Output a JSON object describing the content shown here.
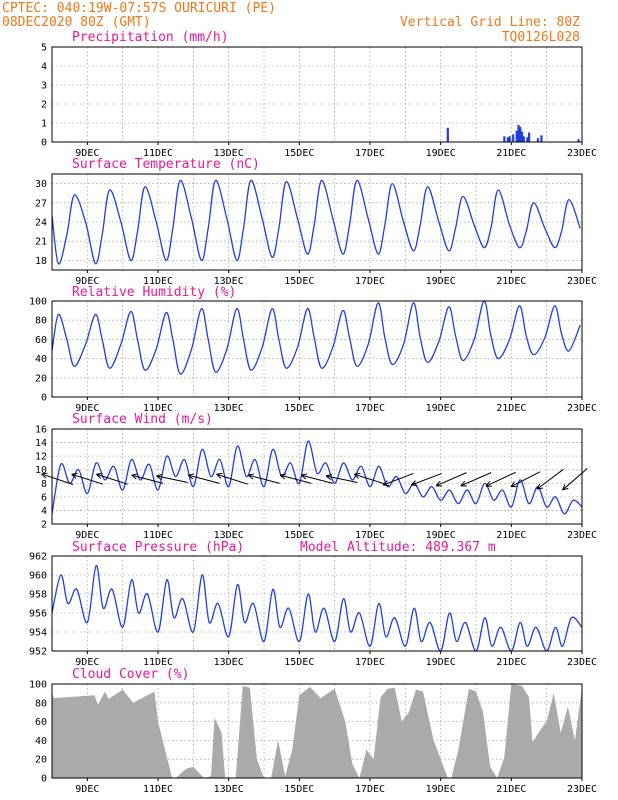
{
  "header": {
    "line1_left": "CPTEC:   040:19W-07:57S  OURICURI (PE)",
    "line2_left": "08DEC2020 80Z (GMT)",
    "right_line1": "Vertical Grid Line: 80Z",
    "right_line2": "TQ0126L028"
  },
  "colors": {
    "header": "#f07818",
    "title": "#e8189a",
    "series": "#1f3fe0",
    "cloud": "#aaaaaa",
    "arrow": "#000000"
  },
  "x_axis": {
    "labels": [
      "9DEC",
      "11DEC",
      "13DEC",
      "15DEC",
      "17DEC",
      "19DEC",
      "21DEC",
      "23DEC"
    ],
    "label_days": [
      9,
      11,
      13,
      15,
      17,
      19,
      21,
      23
    ],
    "day_range": [
      8,
      23
    ]
  },
  "chart_data": [
    {
      "type": "bar",
      "title": "Precipitation (mm/h)",
      "ylim": [
        0,
        5
      ],
      "yticks": [
        "0",
        "1",
        "2",
        "3",
        "4",
        "5"
      ],
      "x_day": [
        19.2,
        20.8,
        20.9,
        20.95,
        21.05,
        21.15,
        21.2,
        21.25,
        21.3,
        21.35,
        21.45,
        21.5,
        21.75,
        21.85,
        22.9
      ],
      "values": [
        0.75,
        0.3,
        0.25,
        0.3,
        0.4,
        0.6,
        0.9,
        0.8,
        0.55,
        0.3,
        0.25,
        0.5,
        0.2,
        0.35,
        0.15
      ]
    },
    {
      "type": "line",
      "title": "Surface Temperature (nC)",
      "ylim": [
        16.5,
        31.5
      ],
      "yticks": [
        "18",
        "21",
        "24",
        "27",
        "30"
      ],
      "x_day": [
        8.0,
        8.18,
        8.42,
        8.63,
        8.95,
        9.23,
        9.42,
        9.63,
        9.95,
        10.23,
        10.42,
        10.63,
        10.95,
        11.23,
        11.42,
        11.63,
        11.95,
        12.23,
        12.42,
        12.63,
        12.95,
        13.23,
        13.42,
        13.63,
        13.95,
        14.23,
        14.42,
        14.63,
        14.95,
        15.23,
        15.42,
        15.63,
        15.95,
        16.23,
        16.42,
        16.63,
        16.95,
        17.23,
        17.42,
        17.63,
        17.95,
        18.23,
        18.42,
        18.63,
        18.95,
        19.23,
        19.42,
        19.63,
        19.95,
        20.23,
        20.42,
        20.63,
        20.95,
        21.23,
        21.42,
        21.63,
        21.95,
        22.23,
        22.42,
        22.63,
        22.95
      ],
      "values": [
        25.0,
        17.5,
        22,
        28.2,
        24,
        17.5,
        22,
        29.0,
        24,
        18.0,
        22.5,
        29.5,
        24,
        18.0,
        23,
        30.5,
        24.5,
        18.0,
        23,
        30.5,
        24.5,
        18.0,
        23,
        30.5,
        24.5,
        18.5,
        23,
        30.3,
        24.5,
        19.0,
        23.5,
        30.5,
        24.5,
        19.0,
        23.5,
        30.5,
        24.5,
        19.0,
        23.5,
        30.0,
        24,
        19.5,
        23.5,
        29.5,
        24,
        19.5,
        23,
        28.0,
        23.5,
        20.0,
        23,
        29.0,
        23.5,
        20.0,
        22.5,
        27.0,
        23,
        20.0,
        22.5,
        27.5,
        23
      ]
    },
    {
      "type": "line",
      "title": "Relative Humidity (%)",
      "ylim": [
        0,
        100
      ],
      "yticks": [
        "0",
        "20",
        "40",
        "60",
        "80",
        "100"
      ],
      "x_day": [
        8.0,
        8.18,
        8.42,
        8.63,
        8.95,
        9.23,
        9.42,
        9.63,
        9.95,
        10.23,
        10.42,
        10.63,
        10.95,
        11.23,
        11.42,
        11.63,
        11.95,
        12.23,
        12.42,
        12.63,
        12.95,
        13.23,
        13.42,
        13.63,
        13.95,
        14.23,
        14.42,
        14.63,
        14.95,
        15.23,
        15.42,
        15.63,
        15.95,
        16.23,
        16.42,
        16.63,
        16.95,
        17.23,
        17.42,
        17.63,
        17.95,
        18.23,
        18.42,
        18.63,
        18.95,
        19.23,
        19.42,
        19.63,
        19.95,
        20.23,
        20.42,
        20.63,
        20.95,
        21.23,
        21.42,
        21.63,
        21.95,
        22.23,
        22.42,
        22.63,
        22.95
      ],
      "values": [
        48,
        86,
        60,
        32,
        55,
        86,
        60,
        30,
        55,
        89,
        60,
        28,
        50,
        88,
        60,
        24,
        50,
        92,
        60,
        26,
        50,
        92,
        60,
        28,
        52,
        92,
        60,
        30,
        52,
        92,
        62,
        30,
        52,
        90,
        62,
        32,
        55,
        98,
        62,
        34,
        55,
        98,
        62,
        36,
        58,
        94,
        64,
        38,
        60,
        100,
        64,
        40,
        60,
        95,
        64,
        44,
        62,
        95,
        66,
        48,
        75
      ]
    },
    {
      "type": "line",
      "title": "Surface Wind (m/s)",
      "ylim": [
        2,
        16
      ],
      "yticks": [
        "2",
        "4",
        "6",
        "8",
        "10",
        "12",
        "14",
        "16"
      ],
      "x_day": [
        8.0,
        8.25,
        8.5,
        8.75,
        9.0,
        9.25,
        9.5,
        9.75,
        10.0,
        10.25,
        10.5,
        10.75,
        11.0,
        11.25,
        11.5,
        11.75,
        12.0,
        12.25,
        12.5,
        12.75,
        13.0,
        13.25,
        13.5,
        13.75,
        14.0,
        14.25,
        14.5,
        14.75,
        15.0,
        15.25,
        15.5,
        15.75,
        16.0,
        16.25,
        16.5,
        16.75,
        17.0,
        17.25,
        17.5,
        17.75,
        18.0,
        18.25,
        18.5,
        18.75,
        19.0,
        19.25,
        19.5,
        19.75,
        20.0,
        20.25,
        20.5,
        20.75,
        21.0,
        21.25,
        21.5,
        21.75,
        22.0,
        22.25,
        22.5,
        22.75,
        23.0
      ],
      "values": [
        3.5,
        10.8,
        8.0,
        10.0,
        6.5,
        11.0,
        8.5,
        10.5,
        7.0,
        11.5,
        8.5,
        10.8,
        7.0,
        12.0,
        9.0,
        11.5,
        7.5,
        13.0,
        9.0,
        11.5,
        7.5,
        13.5,
        9.0,
        11.5,
        7.5,
        13.0,
        9.0,
        11.0,
        8.0,
        14.2,
        9.5,
        11.0,
        8.0,
        11.0,
        8.5,
        10.5,
        7.5,
        10.5,
        7.5,
        9.0,
        6.5,
        8.0,
        6.0,
        7.5,
        5.5,
        7.0,
        5.0,
        7.0,
        5.0,
        8.0,
        5.5,
        7.0,
        4.5,
        8.5,
        5.0,
        7.5,
        4.5,
        6.0,
        3.5,
        5.5,
        4.5
      ],
      "arrows": [
        {
          "day": 8.15,
          "dir": [
            0.95,
            0.32
          ]
        },
        {
          "day": 9.0,
          "dir": [
            0.95,
            0.3
          ]
        },
        {
          "day": 9.7,
          "dir": [
            0.95,
            0.3
          ]
        },
        {
          "day": 10.7,
          "dir": [
            0.95,
            0.25
          ]
        },
        {
          "day": 11.4,
          "dir": [
            0.95,
            0.2
          ]
        },
        {
          "day": 12.3,
          "dir": [
            0.95,
            0.25
          ]
        },
        {
          "day": 13.1,
          "dir": [
            0.95,
            0.3
          ]
        },
        {
          "day": 14.0,
          "dir": [
            0.95,
            0.25
          ]
        },
        {
          "day": 14.9,
          "dir": [
            0.95,
            0.25
          ]
        },
        {
          "day": 15.5,
          "dir": [
            0.95,
            0.25
          ]
        },
        {
          "day": 16.2,
          "dir": [
            0.95,
            0.2
          ]
        },
        {
          "day": 17.0,
          "dir": [
            0.95,
            0.3
          ]
        },
        {
          "day": 17.8,
          "dir": [
            0.92,
            -0.35
          ]
        },
        {
          "day": 18.6,
          "dir": [
            0.92,
            -0.35
          ]
        },
        {
          "day": 19.3,
          "dir": [
            0.92,
            -0.4
          ]
        },
        {
          "day": 20.0,
          "dir": [
            0.92,
            -0.4
          ]
        },
        {
          "day": 20.7,
          "dir": [
            0.9,
            -0.42
          ]
        },
        {
          "day": 21.4,
          "dir": [
            0.88,
            -0.45
          ]
        },
        {
          "day": 22.1,
          "dir": [
            0.8,
            -0.6
          ]
        },
        {
          "day": 22.8,
          "dir": [
            0.75,
            -0.65
          ]
        }
      ]
    },
    {
      "type": "line",
      "title": "Surface Pressure (hPa)",
      "subtitle": "Model Altitude: 489.367 m",
      "ylim": [
        952,
        962
      ],
      "yticks": [
        "952",
        "954",
        "956",
        "958",
        "960",
        "962"
      ],
      "x_day": [
        8.0,
        8.25,
        8.45,
        8.7,
        9.0,
        9.25,
        9.45,
        9.7,
        10.0,
        10.25,
        10.45,
        10.7,
        11.0,
        11.25,
        11.45,
        11.7,
        12.0,
        12.25,
        12.45,
        12.7,
        13.0,
        13.25,
        13.45,
        13.7,
        14.0,
        14.25,
        14.45,
        14.7,
        15.0,
        15.25,
        15.45,
        15.7,
        16.0,
        16.25,
        16.45,
        16.7,
        17.0,
        17.25,
        17.45,
        17.7,
        18.0,
        18.25,
        18.45,
        18.7,
        19.0,
        19.25,
        19.45,
        19.7,
        20.0,
        20.25,
        20.45,
        20.7,
        21.0,
        21.25,
        21.45,
        21.7,
        22.0,
        22.25,
        22.45,
        22.7,
        23.0
      ],
      "values": [
        956.0,
        960.0,
        957.0,
        958.5,
        955.0,
        961.0,
        956.5,
        958.5,
        954.5,
        959.5,
        956.0,
        958.0,
        954.0,
        959.5,
        955.5,
        957.5,
        954.0,
        960.0,
        955.0,
        957.0,
        953.5,
        959.0,
        955.0,
        957.0,
        953.0,
        958.5,
        954.5,
        956.5,
        953.0,
        958.0,
        954.0,
        956.5,
        953.0,
        957.5,
        954.0,
        956.0,
        952.5,
        957.0,
        953.5,
        955.5,
        952.5,
        956.5,
        953.0,
        955.0,
        952.0,
        956.0,
        953.0,
        955.0,
        952.0,
        955.5,
        952.5,
        954.5,
        952.0,
        955.0,
        952.5,
        954.5,
        952.0,
        954.5,
        952.5,
        955.5,
        954.5
      ]
    },
    {
      "type": "area",
      "title": "Cloud Cover (%)",
      "ylim": [
        0,
        100
      ],
      "yticks": [
        "0",
        "20",
        "40",
        "60",
        "80",
        "100"
      ],
      "x_day": [
        8.0,
        8.05,
        9.2,
        9.3,
        9.5,
        9.6,
        10.0,
        10.3,
        10.9,
        11.0,
        11.2,
        11.4,
        11.5,
        11.8,
        12.0,
        12.3,
        12.5,
        12.6,
        12.8,
        12.9,
        13.0,
        13.1,
        13.2,
        13.4,
        13.6,
        13.8,
        14.0,
        14.2,
        14.4,
        14.6,
        14.8,
        15.0,
        15.3,
        15.6,
        16.0,
        16.3,
        16.5,
        16.7,
        16.9,
        17.1,
        17.3,
        17.5,
        17.7,
        17.9,
        18.1,
        18.3,
        18.5,
        18.8,
        19.0,
        19.2,
        19.3,
        19.5,
        19.8,
        20.0,
        20.2,
        20.4,
        20.6,
        20.8,
        21.0,
        21.3,
        21.5,
        21.6,
        21.8,
        22.0,
        22.2,
        22.4,
        22.6,
        22.8,
        23.0
      ],
      "values": [
        90,
        85,
        88,
        78,
        92,
        84,
        94,
        80,
        92,
        60,
        30,
        0,
        0,
        10,
        12,
        0,
        2,
        64,
        48,
        0,
        0,
        0,
        0,
        98,
        96,
        20,
        0,
        0,
        40,
        2,
        30,
        88,
        97,
        85,
        95,
        60,
        15,
        0,
        30,
        20,
        86,
        95,
        96,
        60,
        70,
        94,
        92,
        40,
        20,
        0,
        0,
        30,
        95,
        92,
        70,
        12,
        0,
        22,
        100,
        98,
        86,
        38,
        50,
        60,
        90,
        48,
        76,
        40,
        96
      ]
    }
  ]
}
